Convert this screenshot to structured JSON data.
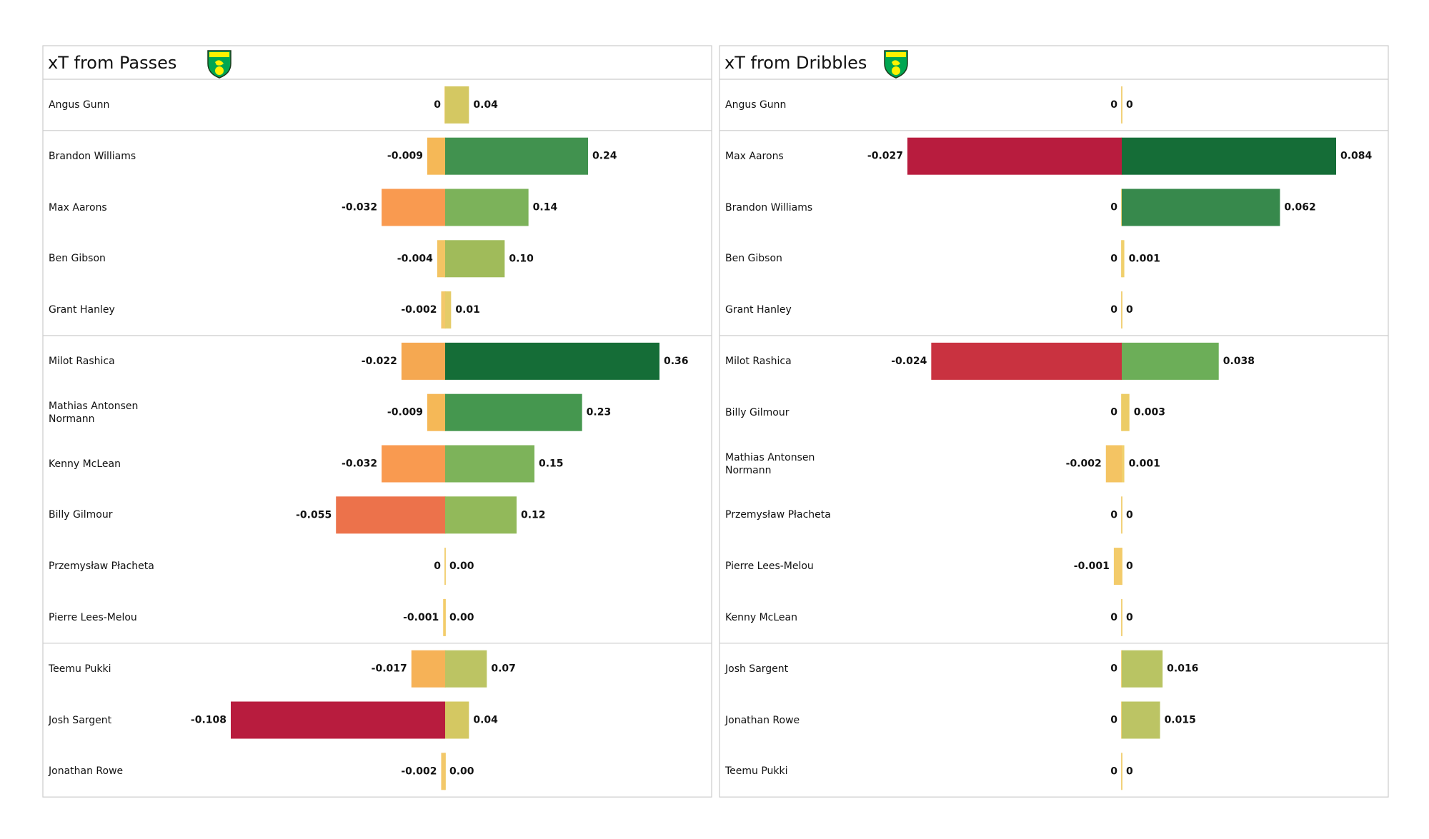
{
  "chart_data": [
    {
      "type": "diverging-bar",
      "title": "xT from Passes",
      "xlim_left": [
        -0.108,
        0
      ],
      "xlim_right": [
        0,
        0.36
      ],
      "group_sizes": [
        1,
        4,
        6,
        3
      ],
      "rows": [
        {
          "name": "Angus Gunn",
          "neg": 0,
          "pos": 0.04,
          "neg_color": "#f2d27a",
          "pos_color": "#d4c862"
        },
        {
          "name": "Brandon Williams",
          "neg": -0.009,
          "pos": 0.24,
          "neg_color": "#f5b857",
          "pos_color": "#41924f"
        },
        {
          "name": "Max Aarons",
          "neg": -0.032,
          "pos": 0.14,
          "neg_color": "#f99a50",
          "pos_color": "#7cb25a"
        },
        {
          "name": "Ben Gibson",
          "neg": -0.004,
          "pos": 0.1,
          "pos_label": "0.10",
          "neg_color": "#f3c463",
          "pos_color": "#a0bb5a"
        },
        {
          "name": "Grant Hanley",
          "neg": -0.002,
          "pos": 0.01,
          "neg_color": "#f3c86a",
          "pos_color": "#e5cc68"
        },
        {
          "name": "Milot Rashica",
          "neg": -0.022,
          "pos": 0.36,
          "neg_color": "#f5a851",
          "pos_color": "#156d37"
        },
        {
          "name": "Mathias  Antonsen\nNormann",
          "neg": -0.009,
          "pos": 0.23,
          "neg_color": "#f5b857",
          "pos_color": "#45974f"
        },
        {
          "name": "Kenny McLean",
          "neg": -0.032,
          "pos": 0.15,
          "neg_color": "#f99a50",
          "pos_color": "#7db35a"
        },
        {
          "name": "Billy Gilmour",
          "neg": -0.055,
          "pos": 0.12,
          "neg_color": "#ec724b",
          "pos_color": "#92b95a"
        },
        {
          "name": "Przemysław Płacheta",
          "neg": 0,
          "pos": 0,
          "pos_label": "0.00",
          "neg_color": "#f2d27a",
          "pos_color": "#f2d27a"
        },
        {
          "name": "Pierre Lees-Melou",
          "neg": -0.001,
          "pos": 0,
          "pos_label": "0.00",
          "neg_color": "#f4cc6a",
          "pos_color": "#f0d27c"
        },
        {
          "name": "Teemu Pukki",
          "neg": -0.017,
          "pos": 0.07,
          "neg_color": "#f6b257",
          "pos_color": "#bcc463"
        },
        {
          "name": "Josh Sargent",
          "neg": -0.108,
          "pos": 0.04,
          "neg_color": "#b81c3e",
          "pos_color": "#d4c862"
        },
        {
          "name": "Jonathan Rowe",
          "neg": -0.002,
          "pos": 0,
          "pos_label": "0.00",
          "neg_color": "#f3c86a",
          "pos_color": "#f0d27c"
        }
      ]
    },
    {
      "type": "diverging-bar",
      "title": "xT from Dribbles",
      "xlim_left": [
        -0.027,
        0
      ],
      "xlim_right": [
        0,
        0.084
      ],
      "group_sizes": [
        1,
        4,
        6,
        3
      ],
      "rows": [
        {
          "name": "Angus Gunn",
          "neg": 0,
          "pos": 0,
          "neg_color": "#f2d27a",
          "pos_color": "#f2d27a"
        },
        {
          "name": "Max Aarons",
          "neg": -0.027,
          "pos": 0.084,
          "neg_color": "#b81c3e",
          "pos_color": "#156d37"
        },
        {
          "name": "Brandon Williams",
          "neg": 0,
          "pos": 0.062,
          "neg_color": "#f2d27a",
          "pos_color": "#37894c"
        },
        {
          "name": "Ben Gibson",
          "neg": 0,
          "pos": 0.001,
          "neg_color": "#f2d27a",
          "pos_color": "#f0d06c"
        },
        {
          "name": "Grant Hanley",
          "neg": 0,
          "pos": 0,
          "neg_color": "#f2d27a",
          "pos_color": "#f2d27a"
        },
        {
          "name": "Milot Rashica",
          "neg": -0.024,
          "pos": 0.038,
          "neg_color": "#c93240",
          "pos_color": "#6cae58"
        },
        {
          "name": "Billy Gilmour",
          "neg": 0,
          "pos": 0.003,
          "neg_color": "#f2d27a",
          "pos_color": "#eccc66"
        },
        {
          "name": "Mathias  Antonsen\nNormann",
          "neg": -0.002,
          "pos": 0.001,
          "neg_color": "#f4c463",
          "pos_color": "#f0d06c"
        },
        {
          "name": "Przemysław Płacheta",
          "neg": 0,
          "pos": 0,
          "neg_color": "#f2d27a",
          "pos_color": "#f2d27a"
        },
        {
          "name": "Pierre Lees-Melou",
          "neg": -0.001,
          "pos": 0,
          "neg_color": "#f3cb6a",
          "pos_color": "#f2d27a"
        },
        {
          "name": "Kenny McLean",
          "neg": 0,
          "pos": 0,
          "neg_color": "#f2d27a",
          "pos_color": "#f2d27a"
        },
        {
          "name": "Josh Sargent",
          "neg": 0,
          "pos": 0.016,
          "neg_color": "#f2d27a",
          "pos_color": "#b9c463"
        },
        {
          "name": "Jonathan Rowe",
          "neg": 0,
          "pos": 0.015,
          "neg_color": "#f2d27a",
          "pos_color": "#bcc464"
        },
        {
          "name": "Teemu Pukki",
          "neg": 0,
          "pos": 0,
          "neg_color": "#f2d27a",
          "pos_color": "#f2d27a"
        }
      ]
    }
  ]
}
